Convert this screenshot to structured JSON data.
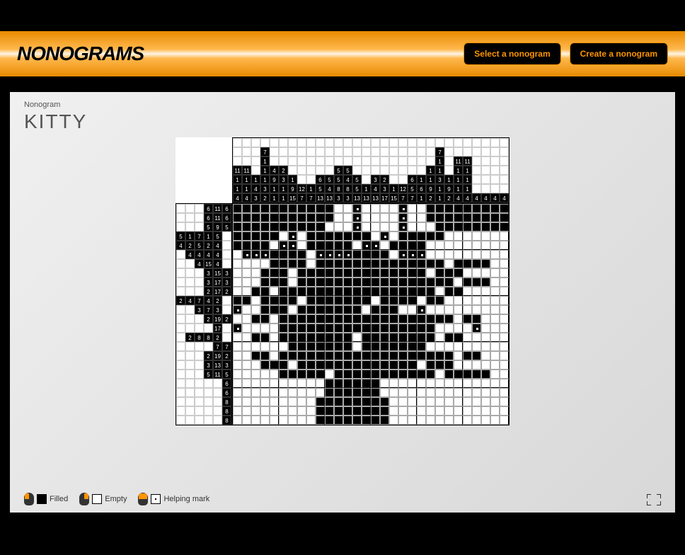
{
  "header": {
    "logo": "NONOGRAMS",
    "select_btn": "Select a nonogram",
    "create_btn": "Create a nonogram"
  },
  "breadcrumb": "Nonogram",
  "title": "KITTY",
  "puzzle": {
    "cols": 30,
    "rows": 24,
    "col_clue_height": 7,
    "row_clue_width": 6,
    "col_clues": [
      [
        "",
        "",
        "",
        "11",
        "1",
        "1",
        "4"
      ],
      [
        "",
        "",
        "",
        "11",
        "1",
        "1",
        "4"
      ],
      [
        "",
        "",
        "",
        "",
        "1",
        "4",
        "3"
      ],
      [
        "",
        "7",
        "1",
        "1",
        "1",
        "3",
        "2"
      ],
      [
        "",
        "",
        "",
        "4",
        "9",
        "1",
        "1"
      ],
      [
        "",
        "",
        "",
        "2",
        "3",
        "1",
        "1"
      ],
      [
        "",
        "",
        "",
        "",
        "1",
        "9",
        "15"
      ],
      [
        "",
        "",
        "",
        "",
        "",
        "12",
        "7"
      ],
      [
        "",
        "",
        "",
        "",
        "",
        "1",
        "7"
      ],
      [
        "",
        "",
        "",
        "",
        "6",
        "5",
        "13"
      ],
      [
        "",
        "",
        "",
        "",
        "5",
        "4",
        "13"
      ],
      [
        "",
        "",
        "",
        "5",
        "5",
        "8",
        "3"
      ],
      [
        "",
        "",
        "",
        "5",
        "4",
        "8",
        "3"
      ],
      [
        "",
        "",
        "",
        "",
        "5",
        "5",
        "13"
      ],
      [
        "",
        "",
        "",
        "",
        "",
        "1",
        "13"
      ],
      [
        "",
        "",
        "",
        "",
        "3",
        "4",
        "13"
      ],
      [
        "",
        "",
        "",
        "",
        "2",
        "3",
        "17"
      ],
      [
        "",
        "",
        "",
        "",
        "",
        "1",
        "15"
      ],
      [
        "",
        "",
        "",
        "",
        "",
        "12",
        "7"
      ],
      [
        "",
        "",
        "",
        "",
        "6",
        "5",
        "7"
      ],
      [
        "",
        "",
        "",
        "",
        "1",
        "6",
        "1"
      ],
      [
        "",
        "",
        "",
        "1",
        "1",
        "9",
        "2"
      ],
      [
        "",
        "7",
        "1",
        "1",
        "3",
        "1",
        "1"
      ],
      [
        "",
        "",
        "",
        "",
        "1",
        "9",
        "2"
      ],
      [
        "",
        "",
        "11",
        "1",
        "1",
        "1",
        "4"
      ],
      [
        "",
        "",
        "11",
        "1",
        "1",
        "1",
        "4"
      ],
      [
        "",
        "",
        "",
        "",
        "",
        "",
        "4"
      ],
      [
        "",
        "",
        "",
        "",
        "",
        "",
        "4"
      ],
      [
        "",
        "",
        "",
        "",
        "",
        "",
        "4"
      ],
      [
        "",
        "",
        "",
        "",
        "",
        "",
        "4"
      ]
    ],
    "row_clues": [
      [
        "",
        "",
        "",
        "6",
        "11",
        "6"
      ],
      [
        "",
        "",
        "",
        "6",
        "11",
        "6"
      ],
      [
        "",
        "",
        "",
        "5",
        "9",
        "5"
      ],
      [
        "5",
        "1",
        "7",
        "1",
        "5",
        ""
      ],
      [
        "4",
        "2",
        "5",
        "2",
        "4",
        ""
      ],
      [
        "",
        "4",
        "4",
        "4",
        "4",
        ""
      ],
      [
        "",
        "",
        "4",
        "15",
        "4",
        ""
      ],
      [
        "",
        "",
        "",
        "3",
        "15",
        "3"
      ],
      [
        "",
        "",
        "",
        "3",
        "17",
        "3"
      ],
      [
        "",
        "",
        "",
        "2",
        "17",
        "2"
      ],
      [
        "2",
        "4",
        "7",
        "4",
        "2",
        ""
      ],
      [
        "",
        "",
        "3",
        "7",
        "3",
        ""
      ],
      [
        "",
        "",
        "",
        "2",
        "19",
        "2"
      ],
      [
        "",
        "",
        "",
        "",
        "17",
        ""
      ],
      [
        "",
        "2",
        "8",
        "8",
        "2",
        ""
      ],
      [
        "",
        "",
        "",
        "",
        "7",
        "7"
      ],
      [
        "",
        "",
        "",
        "2",
        "19",
        "2"
      ],
      [
        "",
        "",
        "",
        "3",
        "13",
        "3"
      ],
      [
        "",
        "",
        "",
        "5",
        "11",
        "5"
      ],
      [
        "",
        "",
        "",
        "",
        "",
        "6"
      ],
      [
        "",
        "",
        "",
        "",
        "",
        "6"
      ],
      [
        "",
        "",
        "",
        "",
        "",
        "8"
      ],
      [
        "",
        "",
        "",
        "",
        "",
        "8"
      ],
      [
        "",
        "",
        "",
        "",
        "",
        "8"
      ]
    ],
    "grid": [
      "fffffffffff..m....m..fffffffff",
      "fffffffffff..m....m..fffffffff",
      "ffffffffff...m....m...ffffffff",
      "fffff.m.fffffff.m.fffff.......",
      "ffff.mm.fffff.mm.ffff.........",
      ".mmmffff.mmmmffff.mmm.........",
      "....ffff.ffffffffffffff.ffff..",
      "...fff.ffffffffffffff.fff.....",
      "...fff.fffffffffffffffff.fff..",
      "..ff.fffffffffffffffff.ff.....",
      "ff.ffff.fffffff.ffff.ff.......",
      "m..fff.fffffff.fff..m.........",
      "..ff.fffffffffffffffffff.ff...",
      "m....fffffffffffffffff....m...",
      "..ff.ffffffff.ffffffff.ff.....",
      "......fffffff.fffffff.........",
      "..ff.fffffffffffffffffff.ff...",
      "...fff.fffffffffffff.fff......",
      ".....fffff.fffffffffff.fffff..",
      "..........ffffff..............",
      "..........ffffff..............",
      ".........ffffffff.............",
      ".........ffffffff.............",
      ".........ffffffff............."
    ]
  },
  "legend": {
    "filled": "Filled",
    "empty": "Empty",
    "mark": "Helping mark"
  },
  "colors": {
    "accent": "#ff9500",
    "header_grad_dark": "#e88a00",
    "header_grad_light": "#fff5e6"
  }
}
